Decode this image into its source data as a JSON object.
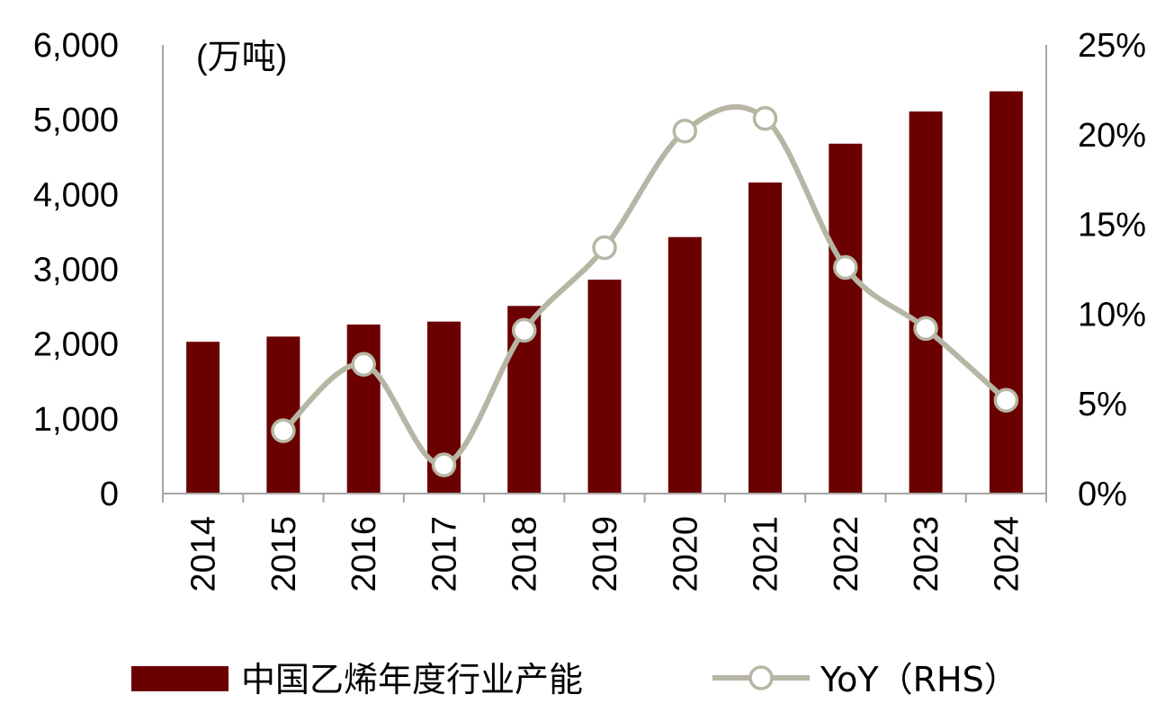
{
  "chart_data": {
    "type": "bar",
    "unit_label": "(万吨)",
    "categories": [
      "2014",
      "2015",
      "2016",
      "2017",
      "2018",
      "2019",
      "2020",
      "2021",
      "2022",
      "2023",
      "2024"
    ],
    "series": [
      {
        "name": "中国乙烯年度行业产能",
        "type": "bar",
        "axis": "left",
        "color": "#6b0000",
        "values": [
          2030,
          2100,
          2260,
          2300,
          2510,
          2860,
          3430,
          4160,
          4680,
          5110,
          5380
        ]
      },
      {
        "name": "YoY（RHS）",
        "type": "line",
        "axis": "right",
        "color": "#b7b6a4",
        "values": [
          null,
          3.5,
          7.2,
          1.6,
          9.1,
          13.7,
          20.2,
          20.9,
          12.6,
          9.2,
          5.2
        ]
      }
    ],
    "y_left": {
      "min": 0,
      "max": 6000,
      "ticks": [
        "0",
        "1,000",
        "2,000",
        "3,000",
        "4,000",
        "5,000",
        "6,000"
      ]
    },
    "y_right": {
      "min": 0,
      "max": 25,
      "ticks": [
        "0%",
        "5%",
        "10%",
        "15%",
        "20%",
        "25%"
      ]
    },
    "grid": false,
    "legend_position": "bottom"
  }
}
